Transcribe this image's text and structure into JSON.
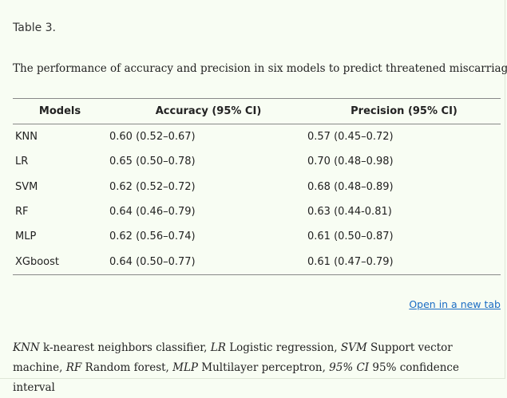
{
  "table_label": "Table 3.",
  "caption": "The performance of accuracy and precision in six models to predict threatened miscarriage",
  "table": {
    "headers": [
      "Models",
      "Accuracy (95% CI)",
      "Precision (95% CI)"
    ],
    "rows": [
      {
        "model": "KNN",
        "accuracy": "0.60 (0.52–0.67)",
        "precision": "0.57 (0.45–0.72)"
      },
      {
        "model": "LR",
        "accuracy": "0.65 (0.50–0.78)",
        "precision": "0.70 (0.48–0.98)"
      },
      {
        "model": "SVM",
        "accuracy": "0.62 (0.52–0.72)",
        "precision": "0.68 (0.48–0.89)"
      },
      {
        "model": "RF",
        "accuracy": "0.64 (0.46–0.79)",
        "precision": "0.63 (0.44-0.81)"
      },
      {
        "model": "MLP",
        "accuracy": "0.62 (0.56–0.74)",
        "precision": "0.61 (0.50–0.87)"
      },
      {
        "model": "XGboost",
        "accuracy": "0.64 (0.50–0.77)",
        "precision": "0.61 (0.47–0.79)"
      }
    ]
  },
  "open_link_label": "Open in a new tab",
  "footnote": [
    {
      "abbr": "KNN",
      "text": " k-nearest neighbors classifier, "
    },
    {
      "abbr": "LR",
      "text": " Logistic regression, "
    },
    {
      "abbr": "SVM",
      "text": " Support vector machine, "
    },
    {
      "abbr": "RF",
      "text": " Random forest, "
    },
    {
      "abbr": "MLP",
      "text": " Multilayer perceptron, "
    },
    {
      "abbr": "95% CI",
      "text": " 95% confidence interval"
    }
  ]
}
